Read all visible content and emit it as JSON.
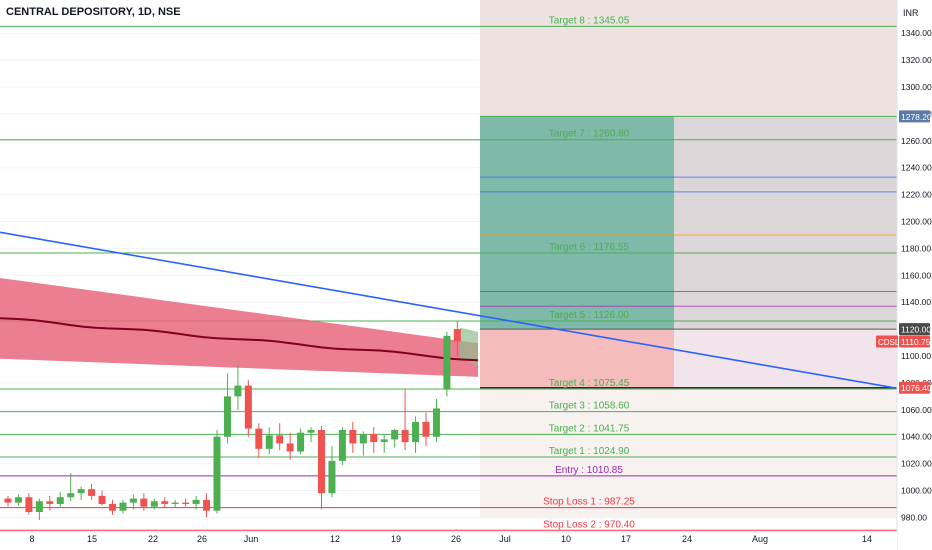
{
  "header": {
    "title": "CENTRAL DEPOSITORY, 1D, NSE"
  },
  "axis": {
    "currency": "INR"
  },
  "colors": {
    "up": "#4caf50",
    "down": "#ef5350",
    "trendline": "#2962ff",
    "level": "#4caf50",
    "entry": "#9c27b0",
    "stop": "#f23645",
    "text_green": "#4caf50",
    "text_purple": "#9c27b0",
    "text_red": "#f23645"
  },
  "chart_data": {
    "type": "candlestick",
    "y_ticks": [
      980,
      1000,
      1020,
      1040,
      1060,
      1080,
      1100,
      1120,
      1140,
      1160,
      1180,
      1200,
      1220,
      1240,
      1260,
      1280,
      1300,
      1320,
      1340
    ],
    "x_ticks": [
      "8",
      "15",
      "22",
      "26",
      "Jun",
      "12",
      "19",
      "26",
      "Jul",
      "10",
      "17",
      "24",
      "Aug",
      "14"
    ],
    "levels": [
      {
        "label": "Target 8 : 1345.05",
        "value": 1345.05,
        "kind": "target"
      },
      {
        "label": "Target 7 : 1260.80",
        "value": 1260.8,
        "kind": "target"
      },
      {
        "label": "Target 6 : 1176.55",
        "value": 1176.55,
        "kind": "target"
      },
      {
        "label": "Target 5 : 1126.00",
        "value": 1126.0,
        "kind": "target"
      },
      {
        "label": "Target 4 : 1075.45",
        "value": 1075.45,
        "kind": "target"
      },
      {
        "label": "Target 3 : 1058.60",
        "value": 1058.6,
        "kind": "target"
      },
      {
        "label": "Target 2 : 1041.75",
        "value": 1041.75,
        "kind": "target"
      },
      {
        "label": "Target 1 : 1024.90",
        "value": 1024.9,
        "kind": "target"
      },
      {
        "label": "Entry : 1010.85",
        "value": 1010.85,
        "kind": "entry"
      },
      {
        "label": "Stop Loss 1 : 987.25",
        "value": 987.25,
        "kind": "stop"
      },
      {
        "label": "Stop Loss 2 : 970.40",
        "value": 970.4,
        "kind": "stop"
      }
    ],
    "price_badges": [
      {
        "label": "1278.20",
        "value": 1278.2,
        "style": "blue"
      },
      {
        "label": "1120.00",
        "value": 1120.0,
        "style": "dark"
      },
      {
        "label": "1110.75",
        "value": 1110.75,
        "style": "red",
        "tag": "CDSL"
      },
      {
        "label": "1076.40",
        "value": 1076.4,
        "style": "red"
      }
    ],
    "candles": [
      [
        994,
        996,
        988,
        991
      ],
      [
        991,
        997,
        989,
        995
      ],
      [
        995,
        998,
        982,
        984
      ],
      [
        984,
        994,
        978,
        992
      ],
      [
        992,
        996,
        985,
        990
      ],
      [
        990,
        999,
        988,
        995
      ],
      [
        995,
        1013,
        992,
        998
      ],
      [
        998,
        1003,
        993,
        1001
      ],
      [
        1001,
        1005,
        993,
        996
      ],
      [
        996,
        1000,
        989,
        990
      ],
      [
        990,
        993,
        982,
        985
      ],
      [
        985,
        993,
        983,
        991
      ],
      [
        991,
        997,
        986,
        994
      ],
      [
        994,
        998,
        985,
        988
      ],
      [
        988,
        994,
        986,
        992
      ],
      [
        992,
        995,
        987,
        990
      ],
      [
        990,
        993,
        987,
        991
      ],
      [
        991,
        994,
        988,
        990
      ],
      [
        990,
        996,
        986,
        993
      ],
      [
        993,
        998,
        980,
        985
      ],
      [
        985,
        1045,
        983,
        1040
      ],
      [
        1040,
        1087,
        1035,
        1070
      ],
      [
        1070,
        1093,
        1060,
        1078
      ],
      [
        1078,
        1082,
        1040,
        1046
      ],
      [
        1046,
        1050,
        1024,
        1031
      ],
      [
        1031,
        1047,
        1027,
        1041
      ],
      [
        1041,
        1050,
        1030,
        1035
      ],
      [
        1035,
        1043,
        1023,
        1029
      ],
      [
        1029,
        1046,
        1027,
        1043
      ],
      [
        1043,
        1047,
        1036,
        1045
      ],
      [
        1045,
        1048,
        986,
        998
      ],
      [
        998,
        1033,
        995,
        1022
      ],
      [
        1022,
        1047,
        1019,
        1045
      ],
      [
        1045,
        1051,
        1028,
        1035
      ],
      [
        1035,
        1044,
        1026,
        1042
      ],
      [
        1042,
        1047,
        1028,
        1036
      ],
      [
        1036,
        1042,
        1028,
        1038
      ],
      [
        1038,
        1046,
        1032,
        1045
      ],
      [
        1045,
        1075,
        1030,
        1036
      ],
      [
        1036,
        1055,
        1028,
        1051
      ],
      [
        1051,
        1058,
        1033,
        1040
      ],
      [
        1040,
        1068,
        1036,
        1061
      ],
      [
        1075,
        1118,
        1070,
        1115
      ],
      [
        1120,
        1126,
        1100,
        1111
      ]
    ],
    "ma_ribbon_start": [
      1128,
      1158,
      1098
    ],
    "ma_ribbon_end": [
      1097,
      1118,
      1093
    ],
    "trendline": {
      "start": 1192,
      "end": 1076
    },
    "projection_box": {
      "top": 1278.2,
      "entry": 1120.0,
      "stop": 1076.4
    }
  }
}
